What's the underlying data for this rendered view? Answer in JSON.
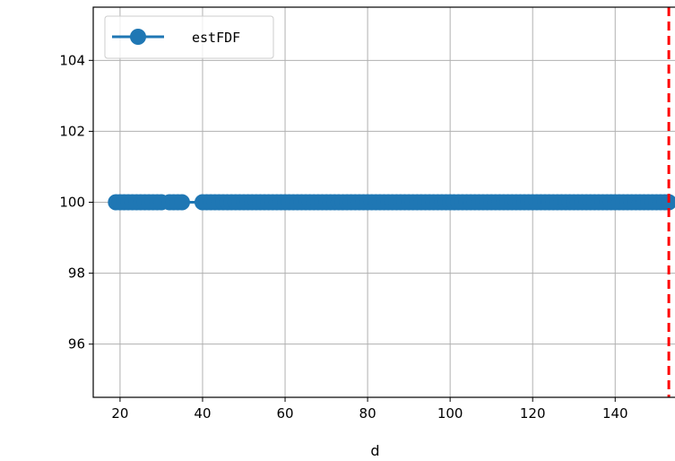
{
  "chart_data": {
    "type": "line",
    "xlabel": "d",
    "ylabel": "",
    "xlim": [
      13.5,
      154.5
    ],
    "ylim": [
      94.5,
      105.5
    ],
    "xticks": [
      20,
      40,
      60,
      80,
      100,
      120,
      140
    ],
    "yticks": [
      96,
      98,
      100,
      102,
      104
    ],
    "grid": true,
    "legend_placement": "upper-left",
    "series": [
      {
        "name": "estFDF",
        "color": "#1f77b4",
        "marker": "circle",
        "segments": [
          {
            "x_start": 19,
            "x_end": 30,
            "y": 100
          },
          {
            "x_start": 32,
            "x_end": 35,
            "y": 100
          },
          {
            "x_start": 40,
            "x_end": 153,
            "y": 100
          }
        ]
      }
    ],
    "vline": {
      "x": 153,
      "color": "#ff0000",
      "style": "dashed"
    }
  }
}
